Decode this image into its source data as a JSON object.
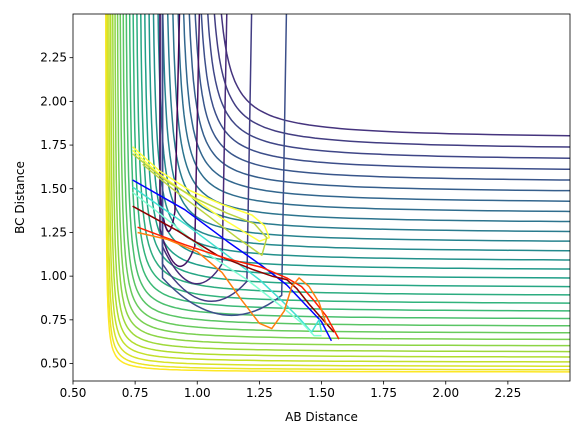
{
  "chart_data": {
    "type": "contour",
    "title": "",
    "xlabel": "AB Distance",
    "ylabel": "BC Distance",
    "xlim": [
      0.5,
      2.5
    ],
    "ylim": [
      0.4,
      2.5
    ],
    "x_ticks": [
      0.5,
      0.75,
      1.0,
      1.25,
      1.5,
      1.75,
      2.0,
      2.25
    ],
    "x_tick_labels": [
      "0.50",
      "0.75",
      "1.00",
      "1.25",
      "1.50",
      "1.75",
      "2.00",
      "2.25"
    ],
    "y_ticks": [
      0.5,
      0.75,
      1.0,
      1.25,
      1.5,
      1.75,
      2.0,
      2.25
    ],
    "y_tick_labels": [
      "0.50",
      "0.75",
      "1.00",
      "1.25",
      "1.50",
      "1.75",
      "2.00",
      "2.25"
    ],
    "grid": false,
    "legend": "none",
    "colormap": "viridis",
    "contours": {
      "count": 30,
      "channel_asymptote_min": 0.63,
      "channel_asymptote_max": 1.78
    },
    "trajectories": [
      {
        "color": "#0000ff",
        "points": [
          [
            0.74,
            1.55
          ],
          [
            0.95,
            1.38
          ],
          [
            1.12,
            1.2
          ],
          [
            1.26,
            1.06
          ],
          [
            1.36,
            0.95
          ],
          [
            1.44,
            0.83
          ],
          [
            1.5,
            0.74
          ],
          [
            1.54,
            0.63
          ]
        ]
      },
      {
        "color": "#40e0d0",
        "points": [
          [
            0.74,
            1.51
          ],
          [
            0.95,
            1.3
          ],
          [
            1.12,
            1.12
          ],
          [
            1.25,
            0.98
          ],
          [
            1.34,
            0.86
          ],
          [
            1.41,
            0.76
          ],
          [
            1.46,
            0.68
          ],
          [
            1.49,
            0.75
          ],
          [
            1.5,
            0.68
          ]
        ]
      },
      {
        "color": "#7fffd4",
        "points": [
          [
            0.74,
            1.48
          ],
          [
            0.9,
            1.3
          ],
          [
            1.05,
            1.12
          ],
          [
            1.2,
            0.98
          ],
          [
            1.3,
            0.87
          ],
          [
            1.37,
            0.79
          ],
          [
            1.43,
            0.72
          ],
          [
            1.47,
            0.66
          ],
          [
            1.5,
            0.66
          ]
        ]
      },
      {
        "color": "#8b0000",
        "points": [
          [
            0.74,
            1.4
          ],
          [
            0.92,
            1.26
          ],
          [
            1.08,
            1.12
          ],
          [
            1.22,
            1.04
          ],
          [
            1.3,
            1.0
          ],
          [
            1.36,
            0.98
          ],
          [
            1.4,
            0.93
          ],
          [
            1.45,
            0.84
          ],
          [
            1.5,
            0.76
          ],
          [
            1.55,
            0.68
          ]
        ]
      },
      {
        "color": "#ff2000",
        "points": [
          [
            0.76,
            1.28
          ],
          [
            0.95,
            1.18
          ],
          [
            1.12,
            1.1
          ],
          [
            1.26,
            1.05
          ],
          [
            1.36,
            0.99
          ],
          [
            1.42,
            0.94
          ],
          [
            1.47,
            0.86
          ],
          [
            1.52,
            0.77
          ],
          [
            1.57,
            0.64
          ]
        ]
      },
      {
        "color": "#ff7f0e",
        "points": [
          [
            0.76,
            1.25
          ],
          [
            0.88,
            1.21
          ],
          [
            1.0,
            1.14
          ],
          [
            1.1,
            1.02
          ],
          [
            1.18,
            0.86
          ],
          [
            1.25,
            0.73
          ],
          [
            1.3,
            0.7
          ],
          [
            1.35,
            0.8
          ],
          [
            1.38,
            0.94
          ],
          [
            1.41,
            0.99
          ],
          [
            1.45,
            0.94
          ],
          [
            1.49,
            0.85
          ],
          [
            1.52,
            0.72
          ]
        ]
      },
      {
        "color": "#ffff3f",
        "points": [
          [
            0.74,
            1.74
          ],
          [
            0.85,
            1.6
          ],
          [
            0.97,
            1.49
          ],
          [
            1.1,
            1.41
          ],
          [
            1.22,
            1.35
          ],
          [
            1.27,
            1.29
          ],
          [
            1.29,
            1.22
          ],
          [
            1.25,
            1.2
          ],
          [
            1.1,
            1.33
          ],
          [
            0.98,
            1.45
          ],
          [
            0.85,
            1.58
          ],
          [
            0.74,
            1.72
          ]
        ]
      },
      {
        "color": "#bcd43f",
        "points": [
          [
            0.74,
            1.7
          ],
          [
            0.88,
            1.54
          ],
          [
            1.0,
            1.44
          ],
          [
            1.12,
            1.36
          ],
          [
            1.23,
            1.3
          ],
          [
            1.28,
            1.22
          ],
          [
            1.26,
            1.12
          ],
          [
            1.16,
            1.22
          ],
          [
            1.03,
            1.36
          ],
          [
            0.9,
            1.5
          ],
          [
            0.78,
            1.64
          ]
        ]
      }
    ]
  }
}
